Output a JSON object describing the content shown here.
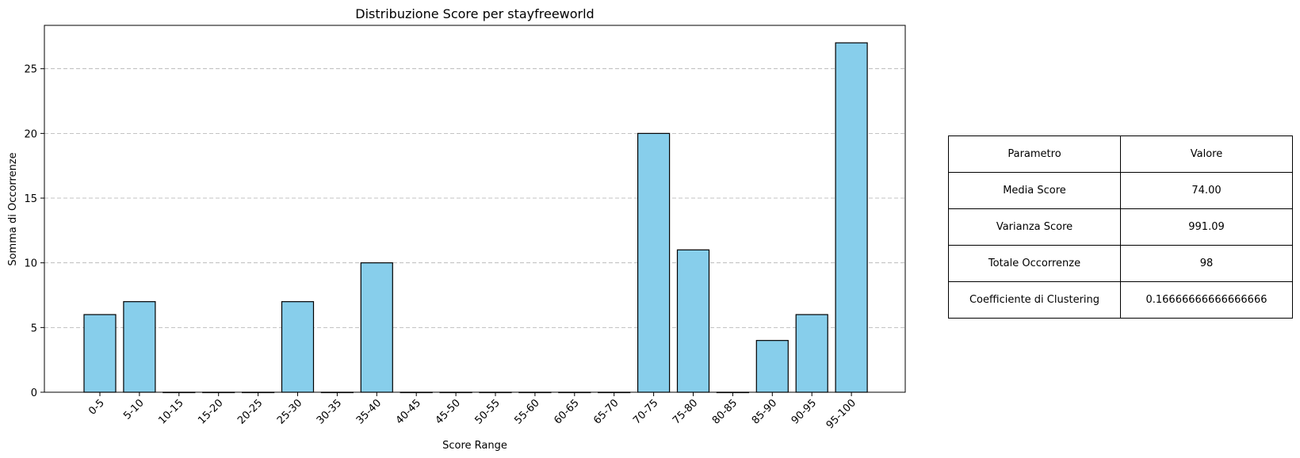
{
  "chart_data": {
    "type": "bar",
    "title": "Distribuzione Score per stayfreeworld",
    "xlabel": "Score Range",
    "ylabel": "Somma di Occorrenze",
    "categories": [
      "0-5",
      "5-10",
      "10-15",
      "15-20",
      "20-25",
      "25-30",
      "30-35",
      "35-40",
      "40-45",
      "45-50",
      "50-55",
      "55-60",
      "60-65",
      "65-70",
      "70-75",
      "75-80",
      "80-85",
      "85-90",
      "90-95",
      "95-100"
    ],
    "values": [
      6,
      7,
      0,
      0,
      0,
      7,
      0,
      10,
      0,
      0,
      0,
      0,
      0,
      0,
      20,
      11,
      0,
      4,
      6,
      27
    ],
    "ylim": [
      0,
      28.35
    ],
    "yticks": [
      0,
      5,
      10,
      15,
      20,
      25
    ],
    "grid": "y-dashed",
    "bar_color": "#87ceeb",
    "edge_color": "#000000",
    "grid_color": "#b0b0b0"
  },
  "table": {
    "header": [
      "Parametro",
      "Valore"
    ],
    "rows": [
      [
        "Media Score",
        "74.00"
      ],
      [
        "Varianza Score",
        "991.09"
      ],
      [
        "Totale Occorrenze",
        "98"
      ],
      [
        "Coefficiente di Clustering",
        "0.16666666666666666"
      ]
    ]
  }
}
